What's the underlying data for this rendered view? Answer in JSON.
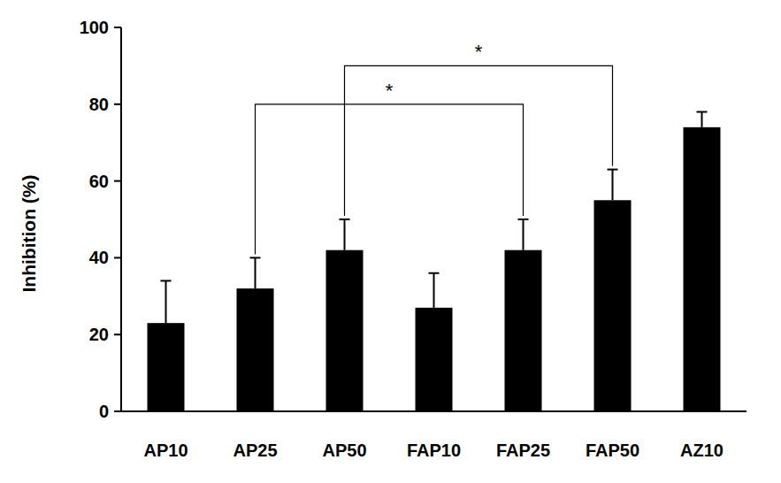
{
  "chart_data": {
    "type": "bar",
    "y_label": "Inhibition (%)",
    "categories": [
      "AP10",
      "AP25",
      "AP50",
      "FAP10",
      "FAP25",
      "FAP50",
      "AZ10"
    ],
    "values": [
      23,
      32,
      42,
      27,
      42,
      55,
      74
    ],
    "errors": [
      11,
      8,
      8,
      9,
      8,
      8,
      4
    ],
    "color": "#000000",
    "ylim": [
      0,
      100
    ],
    "yticks": [
      0,
      20,
      40,
      60,
      80,
      100
    ],
    "grid": false,
    "annotations": [
      {
        "text": "*",
        "from": "AP25",
        "to": "FAP25",
        "y": 80
      },
      {
        "text": "*",
        "from": "AP50",
        "to": "FAP50",
        "y": 90
      }
    ]
  }
}
